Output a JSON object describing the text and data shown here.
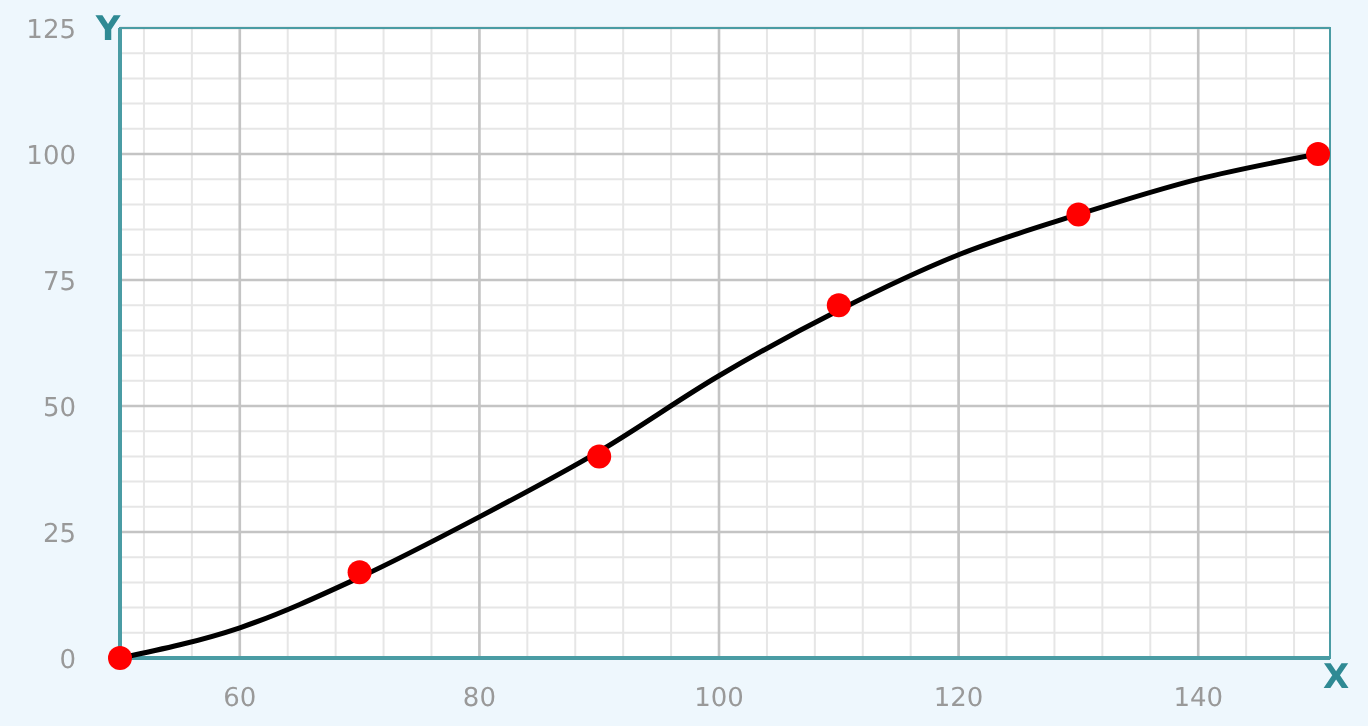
{
  "chart_data": {
    "type": "scatter",
    "xlabel": "X",
    "ylabel": "Y",
    "xlim": [
      50,
      151
    ],
    "ylim": [
      0,
      125
    ],
    "xticks": [
      60,
      80,
      100,
      120,
      140
    ],
    "yticks": [
      0,
      25,
      50,
      75,
      100,
      125
    ],
    "grid": true,
    "marker": "circle",
    "series": [
      {
        "type": "line",
        "color": "#000000",
        "marker": "none",
        "line_style": "solid",
        "x": [
          50,
          60,
          70,
          80,
          90,
          100,
          110,
          120,
          130,
          140,
          150
        ],
        "values": [
          0,
          6,
          16,
          28,
          41,
          56,
          69,
          80,
          88,
          95,
          100
        ]
      },
      {
        "color": "#ff0000",
        "x": [
          50,
          70,
          90,
          110,
          130,
          150
        ],
        "values": [
          0,
          17,
          40,
          70,
          88,
          100
        ]
      }
    ]
  }
}
